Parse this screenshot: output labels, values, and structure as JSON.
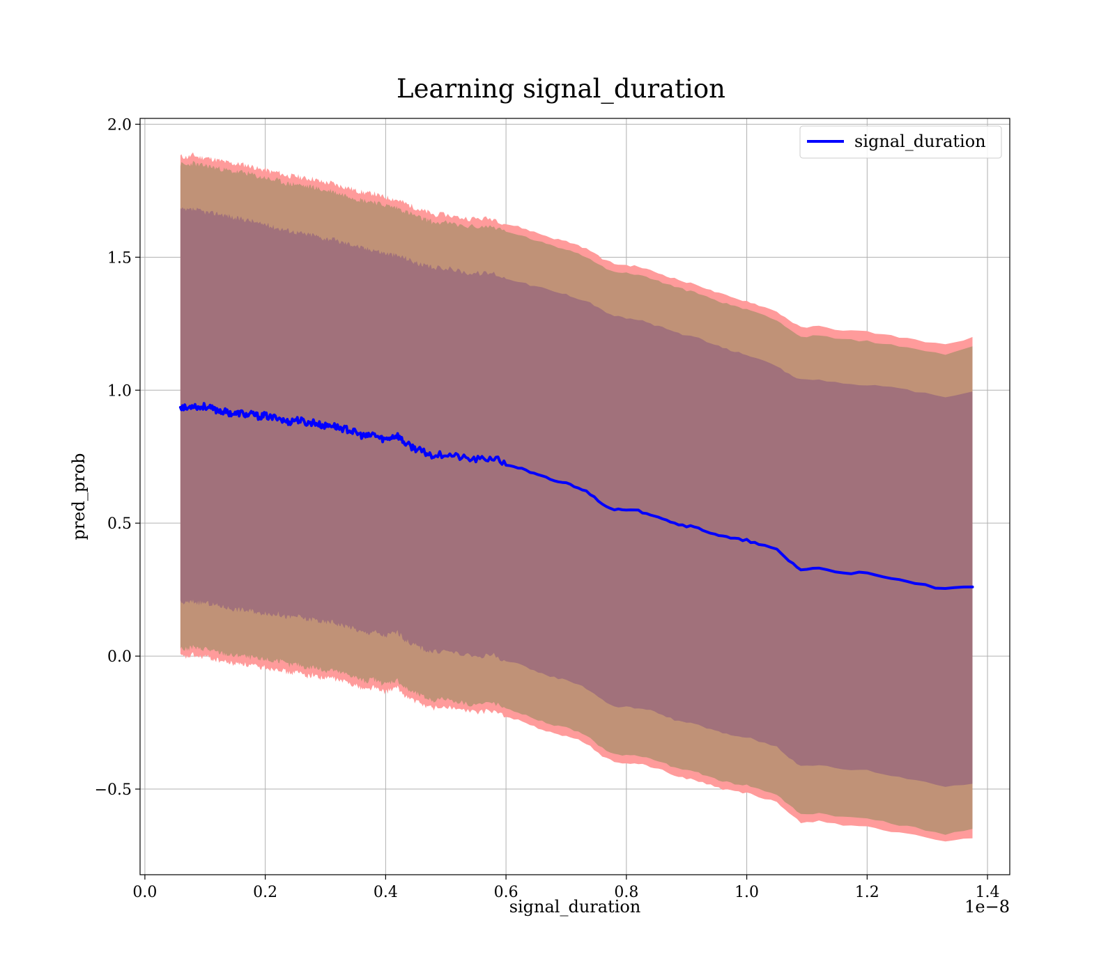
{
  "chart_data": {
    "type": "line",
    "title": "Learning signal_duration",
    "xlabel": "signal_duration",
    "ylabel": "pred_prob",
    "x_offset_label": "1e−8",
    "x_scale": 1e-08,
    "xlim": [
      -0.008,
      1.437
    ],
    "ylim": [
      -0.822,
      2.022
    ],
    "grid": true,
    "legend_position": "top-right",
    "x_ticks": [
      {
        "value": 0.0,
        "label": "0.0"
      },
      {
        "value": 0.2,
        "label": "0.2"
      },
      {
        "value": 0.4,
        "label": "0.4"
      },
      {
        "value": 0.6,
        "label": "0.6"
      },
      {
        "value": 0.8,
        "label": "0.8"
      },
      {
        "value": 1.0,
        "label": "1.0"
      },
      {
        "value": 1.2,
        "label": "1.2"
      },
      {
        "value": 1.4,
        "label": "1.4"
      }
    ],
    "y_ticks": [
      {
        "value": -0.5,
        "label": "−0.5"
      },
      {
        "value": 0.0,
        "label": "0.0"
      },
      {
        "value": 0.5,
        "label": "0.5"
      },
      {
        "value": 1.0,
        "label": "1.0"
      },
      {
        "value": 1.5,
        "label": "1.5"
      },
      {
        "value": 2.0,
        "label": "2.0"
      }
    ],
    "colors": {
      "line": "#0000ff",
      "band_outer": "#ff9b9b",
      "band_middle": "#c09277",
      "band_inner": "#a1717b"
    },
    "series": [
      {
        "name": "signal_duration",
        "x": [
          0.059,
          0.07,
          0.08,
          0.09,
          0.1,
          0.11,
          0.12,
          0.13,
          0.14,
          0.15,
          0.16,
          0.17,
          0.18,
          0.19,
          0.2,
          0.21,
          0.22,
          0.23,
          0.24,
          0.25,
          0.26,
          0.27,
          0.28,
          0.29,
          0.3,
          0.31,
          0.32,
          0.33,
          0.34,
          0.35,
          0.36,
          0.37,
          0.38,
          0.39,
          0.4,
          0.41,
          0.42,
          0.43,
          0.44,
          0.45,
          0.46,
          0.47,
          0.48,
          0.5,
          0.52,
          0.54,
          0.56,
          0.58,
          0.6,
          0.62,
          0.64,
          0.66,
          0.68,
          0.7,
          0.72,
          0.74,
          0.76,
          0.78,
          0.8,
          0.82,
          0.84,
          0.86,
          0.88,
          0.9,
          0.92,
          0.94,
          0.96,
          0.98,
          1.0,
          1.02,
          1.05,
          1.07,
          1.09,
          1.12,
          1.16,
          1.2,
          1.24,
          1.28,
          1.33,
          1.375
        ],
        "y": [
          0.94,
          0.93,
          0.945,
          0.935,
          0.94,
          0.93,
          0.925,
          0.92,
          0.915,
          0.91,
          0.915,
          0.905,
          0.91,
          0.9,
          0.905,
          0.895,
          0.9,
          0.885,
          0.88,
          0.89,
          0.885,
          0.875,
          0.88,
          0.87,
          0.865,
          0.87,
          0.86,
          0.855,
          0.85,
          0.84,
          0.83,
          0.825,
          0.835,
          0.82,
          0.815,
          0.825,
          0.83,
          0.805,
          0.79,
          0.78,
          0.77,
          0.76,
          0.755,
          0.76,
          0.75,
          0.74,
          0.74,
          0.745,
          0.72,
          0.71,
          0.69,
          0.675,
          0.66,
          0.65,
          0.635,
          0.61,
          0.575,
          0.55,
          0.548,
          0.545,
          0.535,
          0.52,
          0.5,
          0.49,
          0.48,
          0.465,
          0.45,
          0.44,
          0.435,
          0.42,
          0.4,
          0.36,
          0.325,
          0.33,
          0.315,
          0.31,
          0.29,
          0.275,
          0.25,
          0.26
        ],
        "inner_upper": [
          1.68,
          1.675,
          1.68,
          1.675,
          1.67,
          1.665,
          1.665,
          1.66,
          1.655,
          1.645,
          1.645,
          1.64,
          1.635,
          1.625,
          1.625,
          1.615,
          1.61,
          1.605,
          1.6,
          1.595,
          1.59,
          1.585,
          1.585,
          1.575,
          1.57,
          1.57,
          1.56,
          1.555,
          1.55,
          1.545,
          1.535,
          1.53,
          1.53,
          1.52,
          1.515,
          1.51,
          1.505,
          1.5,
          1.49,
          1.48,
          1.47,
          1.465,
          1.46,
          1.46,
          1.45,
          1.44,
          1.44,
          1.44,
          1.42,
          1.41,
          1.395,
          1.385,
          1.37,
          1.36,
          1.345,
          1.33,
          1.3,
          1.28,
          1.27,
          1.265,
          1.25,
          1.235,
          1.22,
          1.205,
          1.195,
          1.175,
          1.16,
          1.145,
          1.135,
          1.115,
          1.09,
          1.06,
          1.04,
          1.04,
          1.025,
          1.02,
          1.01,
          0.995,
          0.975,
          0.995
        ],
        "inner_lower": [
          0.2,
          0.2,
          0.205,
          0.2,
          0.2,
          0.195,
          0.19,
          0.185,
          0.18,
          0.175,
          0.175,
          0.17,
          0.17,
          0.16,
          0.165,
          0.155,
          0.16,
          0.15,
          0.145,
          0.15,
          0.145,
          0.135,
          0.14,
          0.13,
          0.125,
          0.13,
          0.12,
          0.115,
          0.11,
          0.1,
          0.09,
          0.085,
          0.095,
          0.08,
          0.075,
          0.085,
          0.09,
          0.065,
          0.05,
          0.04,
          0.03,
          0.02,
          0.015,
          0.02,
          0.01,
          0.0,
          0.0,
          0.005,
          -0.02,
          -0.03,
          -0.05,
          -0.065,
          -0.08,
          -0.09,
          -0.105,
          -0.13,
          -0.165,
          -0.19,
          -0.192,
          -0.195,
          -0.205,
          -0.22,
          -0.24,
          -0.25,
          -0.26,
          -0.275,
          -0.29,
          -0.3,
          -0.305,
          -0.32,
          -0.34,
          -0.38,
          -0.415,
          -0.41,
          -0.425,
          -0.43,
          -0.45,
          -0.465,
          -0.49,
          -0.48
        ],
        "middle_upper": [
          1.85,
          1.845,
          1.855,
          1.845,
          1.845,
          1.84,
          1.835,
          1.83,
          1.825,
          1.82,
          1.82,
          1.815,
          1.81,
          1.8,
          1.8,
          1.79,
          1.79,
          1.78,
          1.775,
          1.775,
          1.77,
          1.765,
          1.765,
          1.755,
          1.75,
          1.75,
          1.74,
          1.735,
          1.73,
          1.72,
          1.715,
          1.71,
          1.71,
          1.7,
          1.695,
          1.69,
          1.685,
          1.675,
          1.665,
          1.655,
          1.645,
          1.64,
          1.63,
          1.63,
          1.62,
          1.615,
          1.615,
          1.615,
          1.595,
          1.585,
          1.57,
          1.555,
          1.54,
          1.53,
          1.515,
          1.495,
          1.465,
          1.445,
          1.44,
          1.435,
          1.42,
          1.405,
          1.39,
          1.375,
          1.365,
          1.345,
          1.33,
          1.315,
          1.305,
          1.29,
          1.265,
          1.23,
          1.2,
          1.205,
          1.19,
          1.185,
          1.17,
          1.155,
          1.135,
          1.165
        ],
        "middle_lower": [
          0.03,
          0.025,
          0.035,
          0.025,
          0.03,
          0.02,
          0.015,
          0.01,
          0.005,
          0.0,
          0.005,
          -0.005,
          -0.005,
          -0.015,
          -0.01,
          -0.02,
          -0.015,
          -0.025,
          -0.035,
          -0.03,
          -0.035,
          -0.045,
          -0.04,
          -0.05,
          -0.055,
          -0.05,
          -0.06,
          -0.065,
          -0.07,
          -0.08,
          -0.09,
          -0.095,
          -0.085,
          -0.1,
          -0.105,
          -0.095,
          -0.09,
          -0.115,
          -0.13,
          -0.14,
          -0.15,
          -0.16,
          -0.165,
          -0.16,
          -0.17,
          -0.18,
          -0.18,
          -0.175,
          -0.2,
          -0.21,
          -0.23,
          -0.245,
          -0.26,
          -0.27,
          -0.285,
          -0.31,
          -0.345,
          -0.37,
          -0.372,
          -0.375,
          -0.385,
          -0.4,
          -0.42,
          -0.43,
          -0.44,
          -0.455,
          -0.47,
          -0.48,
          -0.485,
          -0.5,
          -0.52,
          -0.56,
          -0.595,
          -0.59,
          -0.605,
          -0.61,
          -0.63,
          -0.645,
          -0.67,
          -0.65
        ],
        "outer_upper": [
          1.88,
          1.875,
          1.885,
          1.875,
          1.875,
          1.87,
          1.865,
          1.86,
          1.855,
          1.85,
          1.85,
          1.845,
          1.84,
          1.83,
          1.83,
          1.82,
          1.82,
          1.81,
          1.805,
          1.805,
          1.8,
          1.795,
          1.795,
          1.785,
          1.78,
          1.78,
          1.77,
          1.765,
          1.76,
          1.75,
          1.745,
          1.74,
          1.74,
          1.73,
          1.725,
          1.72,
          1.715,
          1.705,
          1.695,
          1.685,
          1.675,
          1.67,
          1.66,
          1.66,
          1.65,
          1.645,
          1.645,
          1.645,
          1.625,
          1.615,
          1.6,
          1.585,
          1.57,
          1.56,
          1.545,
          1.525,
          1.495,
          1.475,
          1.47,
          1.465,
          1.45,
          1.435,
          1.42,
          1.405,
          1.395,
          1.375,
          1.36,
          1.345,
          1.335,
          1.32,
          1.295,
          1.265,
          1.235,
          1.24,
          1.225,
          1.22,
          1.205,
          1.19,
          1.17,
          1.2
        ],
        "outer_lower": [
          0.0,
          -0.005,
          0.005,
          -0.005,
          0.0,
          -0.01,
          -0.015,
          -0.02,
          -0.025,
          -0.03,
          -0.025,
          -0.035,
          -0.035,
          -0.045,
          -0.04,
          -0.05,
          -0.045,
          -0.055,
          -0.065,
          -0.06,
          -0.065,
          -0.075,
          -0.07,
          -0.08,
          -0.085,
          -0.08,
          -0.09,
          -0.095,
          -0.1,
          -0.11,
          -0.12,
          -0.125,
          -0.115,
          -0.13,
          -0.135,
          -0.125,
          -0.12,
          -0.145,
          -0.16,
          -0.17,
          -0.18,
          -0.19,
          -0.195,
          -0.19,
          -0.2,
          -0.21,
          -0.21,
          -0.205,
          -0.23,
          -0.24,
          -0.26,
          -0.275,
          -0.29,
          -0.3,
          -0.315,
          -0.34,
          -0.375,
          -0.4,
          -0.402,
          -0.405,
          -0.415,
          -0.43,
          -0.45,
          -0.46,
          -0.47,
          -0.485,
          -0.5,
          -0.51,
          -0.515,
          -0.53,
          -0.55,
          -0.59,
          -0.625,
          -0.62,
          -0.635,
          -0.64,
          -0.66,
          -0.675,
          -0.7,
          -0.685
        ]
      }
    ]
  }
}
